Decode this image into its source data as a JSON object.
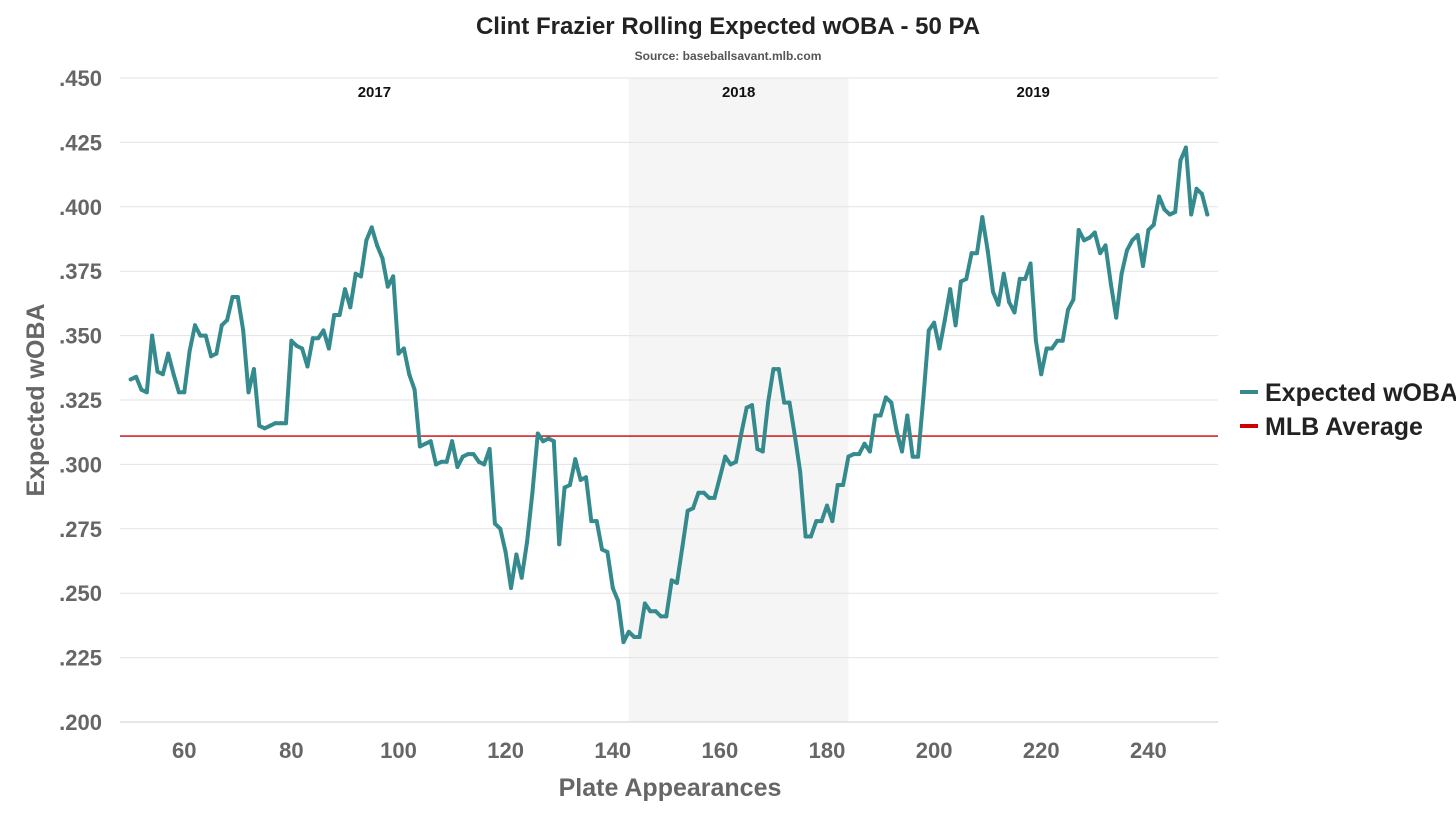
{
  "chart_data": {
    "type": "line",
    "title": "Clint Frazier Rolling Expected wOBA - 50 PA",
    "subtitle": "Source: baseballsavant.mlb.com",
    "xlabel": "Plate Appearances",
    "ylabel": "Expected wOBA",
    "xlim": [
      48,
      253
    ],
    "ylim": [
      0.2,
      0.45
    ],
    "x_ticks": [
      60,
      80,
      100,
      120,
      140,
      160,
      180,
      200,
      220,
      240
    ],
    "x_tick_labels": [
      "60",
      "80",
      "100",
      "120",
      "140",
      "160",
      "180",
      "200",
      "220",
      "240"
    ],
    "y_ticks": [
      0.2,
      0.225,
      0.25,
      0.275,
      0.3,
      0.325,
      0.35,
      0.375,
      0.4,
      0.425,
      0.45
    ],
    "y_tick_labels": [
      ".200",
      ".225",
      ".250",
      ".275",
      ".300",
      ".325",
      ".350",
      ".375",
      ".400",
      ".425",
      ".450"
    ],
    "grid": "horizontal",
    "legend_position": "right",
    "seasons": [
      {
        "label": "2017",
        "start": 48,
        "end": 143,
        "shaded": false
      },
      {
        "label": "2018",
        "start": 143,
        "end": 184,
        "shaded": true
      },
      {
        "label": "2019",
        "start": 184,
        "end": 253,
        "shaded": false
      }
    ],
    "reference_line": {
      "name": "MLB Average",
      "value": 0.311,
      "color": "#cc0000"
    },
    "series": [
      {
        "name": "Expected wOBA",
        "color": "#358a8e",
        "x": [
          50,
          51,
          52,
          53,
          54,
          55,
          56,
          57,
          58,
          59,
          60,
          61,
          62,
          63,
          64,
          65,
          66,
          67,
          68,
          69,
          70,
          71,
          72,
          73,
          74,
          75,
          76,
          77,
          78,
          79,
          80,
          81,
          82,
          83,
          84,
          85,
          86,
          87,
          88,
          89,
          90,
          91,
          92,
          93,
          94,
          95,
          96,
          97,
          98,
          99,
          100,
          101,
          102,
          103,
          104,
          105,
          106,
          107,
          108,
          109,
          110,
          111,
          112,
          113,
          114,
          115,
          116,
          117,
          118,
          119,
          120,
          121,
          122,
          123,
          124,
          125,
          126,
          127,
          128,
          129,
          130,
          131,
          132,
          133,
          134,
          135,
          136,
          137,
          138,
          139,
          140,
          141,
          142,
          143,
          144,
          145,
          146,
          147,
          148,
          149,
          150,
          151,
          152,
          153,
          154,
          155,
          156,
          157,
          158,
          159,
          160,
          161,
          162,
          163,
          164,
          165,
          166,
          167,
          168,
          169,
          170,
          171,
          172,
          173,
          174,
          175,
          176,
          177,
          178,
          179,
          180,
          181,
          182,
          183,
          184,
          185,
          186,
          187,
          188,
          189,
          190,
          191,
          192,
          193,
          194,
          195,
          196,
          197,
          198,
          199,
          200,
          201,
          202,
          203,
          204,
          205,
          206,
          207,
          208,
          209,
          210,
          211,
          212,
          213,
          214,
          215,
          216,
          217,
          218,
          219,
          220,
          221,
          222,
          223,
          224,
          225,
          226,
          227,
          228,
          229,
          230,
          231,
          232,
          233,
          234,
          235,
          236,
          237,
          238,
          239,
          240,
          241,
          242,
          243,
          244,
          245,
          246,
          247,
          248,
          249,
          250,
          251
        ],
        "values": [
          0.333,
          0.334,
          0.329,
          0.328,
          0.35,
          0.336,
          0.335,
          0.343,
          0.335,
          0.328,
          0.328,
          0.344,
          0.354,
          0.35,
          0.35,
          0.342,
          0.343,
          0.354,
          0.356,
          0.365,
          0.365,
          0.352,
          0.328,
          0.337,
          0.315,
          0.314,
          0.315,
          0.316,
          0.316,
          0.316,
          0.348,
          0.346,
          0.345,
          0.338,
          0.349,
          0.349,
          0.352,
          0.345,
          0.358,
          0.358,
          0.368,
          0.361,
          0.374,
          0.373,
          0.387,
          0.392,
          0.385,
          0.38,
          0.369,
          0.373,
          0.343,
          0.345,
          0.335,
          0.329,
          0.307,
          0.308,
          0.309,
          0.3,
          0.301,
          0.301,
          0.309,
          0.299,
          0.303,
          0.304,
          0.304,
          0.301,
          0.3,
          0.306,
          0.277,
          0.275,
          0.266,
          0.252,
          0.265,
          0.256,
          0.27,
          0.289,
          0.312,
          0.309,
          0.31,
          0.309,
          0.269,
          0.291,
          0.292,
          0.302,
          0.294,
          0.295,
          0.278,
          0.278,
          0.267,
          0.266,
          0.252,
          0.247,
          0.231,
          0.235,
          0.233,
          0.233,
          0.246,
          0.243,
          0.243,
          0.241,
          0.241,
          0.255,
          0.254,
          0.268,
          0.282,
          0.283,
          0.289,
          0.289,
          0.287,
          0.287,
          0.295,
          0.303,
          0.3,
          0.301,
          0.312,
          0.322,
          0.323,
          0.306,
          0.305,
          0.324,
          0.337,
          0.337,
          0.324,
          0.324,
          0.311,
          0.297,
          0.272,
          0.272,
          0.278,
          0.278,
          0.284,
          0.278,
          0.292,
          0.292,
          0.303,
          0.304,
          0.304,
          0.308,
          0.305,
          0.319,
          0.319,
          0.326,
          0.324,
          0.313,
          0.305,
          0.319,
          0.303,
          0.303,
          0.326,
          0.352,
          0.355,
          0.345,
          0.356,
          0.368,
          0.354,
          0.371,
          0.372,
          0.382,
          0.382,
          0.396,
          0.383,
          0.367,
          0.362,
          0.374,
          0.363,
          0.359,
          0.372,
          0.372,
          0.378,
          0.348,
          0.335,
          0.345,
          0.345,
          0.348,
          0.348,
          0.36,
          0.364,
          0.391,
          0.387,
          0.388,
          0.39,
          0.382,
          0.385,
          0.37,
          0.357,
          0.374,
          0.383,
          0.387,
          0.389,
          0.377,
          0.391,
          0.393,
          0.404,
          0.399,
          0.397,
          0.398,
          0.418,
          0.423,
          0.397,
          0.407,
          0.405,
          0.397
        ]
      }
    ]
  }
}
